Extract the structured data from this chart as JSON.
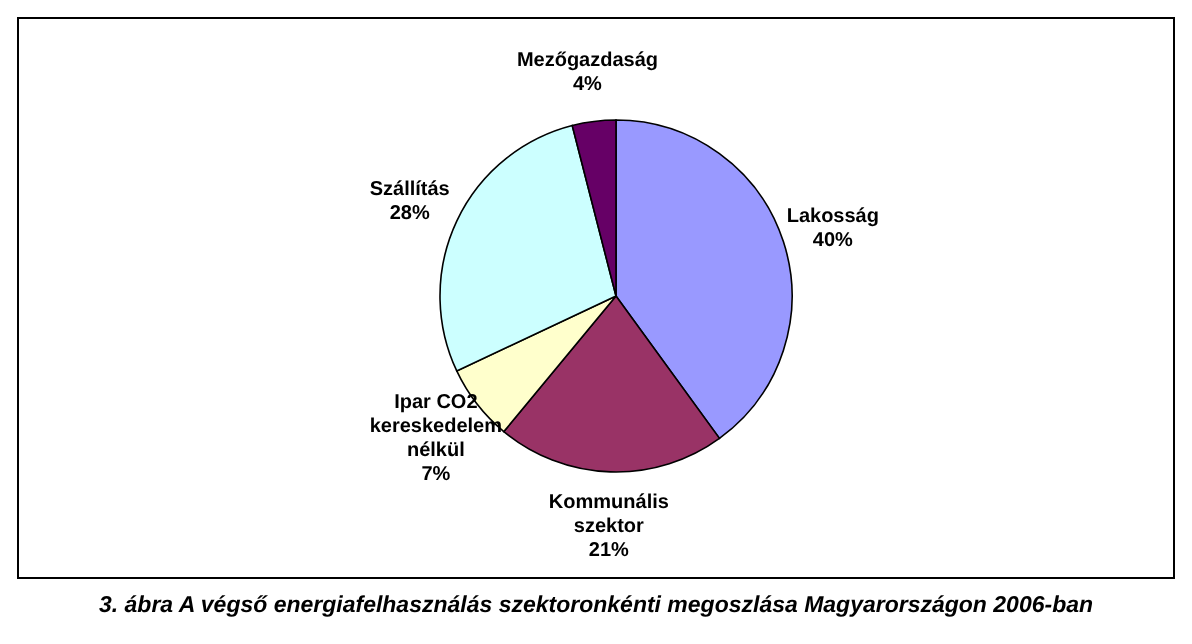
{
  "chart_data": {
    "type": "pie",
    "categories": [
      "Lakosság",
      "Kommunális szektor",
      "Ipar CO2 kereskedelem nélkül",
      "Szállítás",
      "Mezőgazdaság"
    ],
    "values": [
      40,
      21,
      7,
      28,
      4
    ],
    "value_labels": [
      "40%",
      "21%",
      "7%",
      "28%",
      "4%"
    ],
    "colors": [
      "#9999ff",
      "#993366",
      "#ffffcc",
      "#ccffff",
      "#660066"
    ],
    "annotations": [
      "3. ábra A végső energiafelhasználás szektoronkénti megoszlása Magyarországon 2006-ban"
    ]
  }
}
